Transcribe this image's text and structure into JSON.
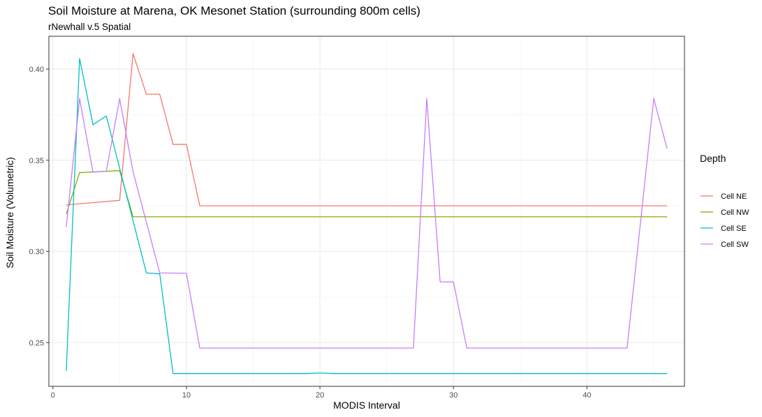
{
  "chart_data": {
    "type": "line",
    "title": "Soil Moisture at Marena, OK Mesonet Station (surrounding 800m cells)",
    "subtitle": "rNewhall v.5 Spatial",
    "xlabel": "MODIS Interval",
    "ylabel": "Soil Moisture (Volumetric)",
    "xlim": [
      -0.3,
      47.3
    ],
    "ylim": [
      0.226,
      0.418
    ],
    "x_ticks": [
      0,
      10,
      20,
      30,
      40
    ],
    "x_tick_labels": [
      "0",
      "10",
      "20",
      "30",
      "40"
    ],
    "y_ticks": [
      0.25,
      0.3,
      0.35,
      0.4
    ],
    "y_tick_labels": [
      "0.25",
      "0.30",
      "0.35",
      "0.40"
    ],
    "grid": true,
    "legend": {
      "title": "Depth",
      "placement": "right"
    },
    "series": [
      {
        "name": "Cell NE",
        "color": "#F8766D",
        "x": [
          1,
          5,
          6,
          7,
          8,
          9,
          10,
          11,
          46
        ],
        "y": [
          0.3255,
          0.328,
          0.4085,
          0.3862,
          0.3862,
          0.3587,
          0.3587,
          0.325,
          0.325
        ]
      },
      {
        "name": "Cell NW",
        "color": "#7CAE00",
        "x": [
          1,
          2,
          5,
          6,
          46
        ],
        "y": [
          0.3205,
          0.3432,
          0.3443,
          0.319,
          0.319
        ]
      },
      {
        "name": "Cell SE",
        "color": "#00BFC4",
        "x": [
          1,
          2,
          3,
          4,
          7,
          8,
          9,
          19,
          20,
          21,
          46
        ],
        "y": [
          0.2345,
          0.4058,
          0.3695,
          0.3743,
          0.2882,
          0.2877,
          0.233,
          0.233,
          0.2333,
          0.233,
          0.233
        ]
      },
      {
        "name": "Cell SW",
        "color": "#C77CFF",
        "x": [
          1,
          2,
          3,
          4,
          5,
          6,
          8,
          10,
          11,
          27,
          28,
          29,
          30,
          31,
          43,
          45,
          46
        ],
        "y": [
          0.3133,
          0.3838,
          0.3435,
          0.344,
          0.3838,
          0.3438,
          0.2882,
          0.288,
          0.247,
          0.247,
          0.3838,
          0.2833,
          0.2832,
          0.247,
          0.247,
          0.3838,
          0.3563
        ]
      }
    ]
  }
}
